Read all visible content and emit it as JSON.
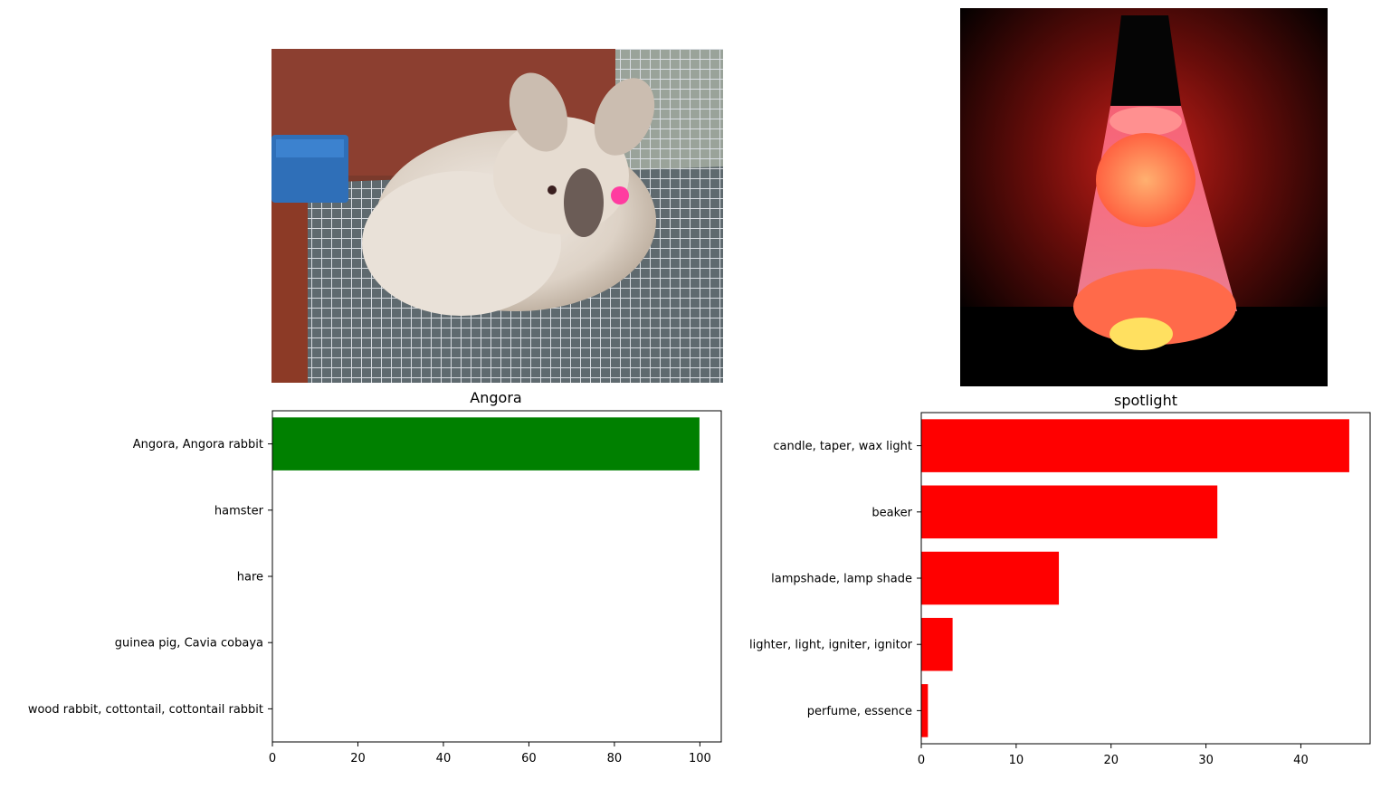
{
  "chart_data": [
    {
      "type": "bar",
      "orientation": "horizontal",
      "title": "Angora",
      "categories": [
        "Angora, Angora rabbit",
        "hamster",
        "hare",
        "guinea pig, Cavia cobaya",
        "wood rabbit, cottontail, cottontail rabbit"
      ],
      "values": [
        99.9,
        0.02,
        0.02,
        0.01,
        0.01
      ],
      "bar_color": "#008000",
      "xlim": [
        0,
        105
      ],
      "xticks": [
        0,
        20,
        40,
        60,
        80,
        100
      ],
      "grid": false,
      "image": "angora-rabbit-photo"
    },
    {
      "type": "bar",
      "orientation": "horizontal",
      "title": "spotlight",
      "categories": [
        "candle, taper, wax light",
        "beaker",
        "lampshade, lamp shade",
        "lighter, light, igniter, ignitor",
        "perfume, essence"
      ],
      "values": [
        45.1,
        31.2,
        14.5,
        3.3,
        0.7
      ],
      "bar_color": "#ff0000",
      "xlim": [
        0,
        47.3
      ],
      "xticks": [
        0,
        10,
        20,
        30,
        40
      ],
      "grid": false,
      "image": "lava-lamp-photo"
    }
  ]
}
